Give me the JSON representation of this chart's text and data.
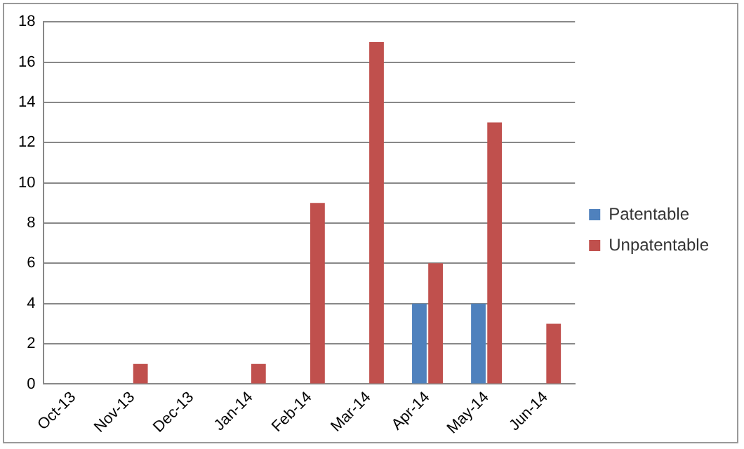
{
  "chart_data": {
    "type": "bar",
    "categories": [
      "Oct-13",
      "Nov-13",
      "Dec-13",
      "Jan-14",
      "Feb-14",
      "Mar-14",
      "Apr-14",
      "May-14",
      "Jun-14"
    ],
    "series": [
      {
        "name": "Patentable",
        "color": "#4f81bd",
        "values": [
          0,
          0,
          0,
          0,
          0,
          0,
          4,
          4,
          0
        ]
      },
      {
        "name": "Unpatentable",
        "color": "#c0504d",
        "values": [
          0,
          1,
          0,
          1,
          9,
          17,
          6,
          13,
          3
        ]
      }
    ],
    "ylim": [
      0,
      18
    ],
    "yticks": [
      0,
      2,
      4,
      6,
      8,
      10,
      12,
      14,
      16,
      18
    ],
    "grid": "y",
    "legend": "right"
  }
}
